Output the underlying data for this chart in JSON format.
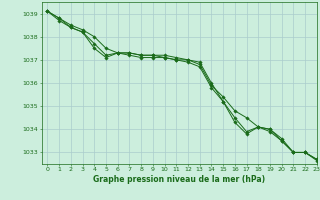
{
  "title": "Graphe pression niveau de la mer (hPa)",
  "background_color": "#cceedd",
  "grid_color": "#aacccc",
  "line_color": "#1a6b1a",
  "xlim": [
    -0.5,
    23
  ],
  "ylim": [
    1032.5,
    1039.5
  ],
  "yticks": [
    1033,
    1034,
    1035,
    1036,
    1037,
    1038,
    1039
  ],
  "xticks": [
    0,
    1,
    2,
    3,
    4,
    5,
    6,
    7,
    8,
    9,
    10,
    11,
    12,
    13,
    14,
    15,
    16,
    17,
    18,
    19,
    20,
    21,
    22,
    23
  ],
  "series1": [
    1039.1,
    1038.7,
    1038.4,
    1038.2,
    1037.7,
    1037.2,
    1037.3,
    1037.3,
    1037.2,
    1037.2,
    1037.2,
    1037.1,
    1037.0,
    1036.9,
    1036.0,
    1035.2,
    1034.5,
    1033.9,
    1034.1,
    1034.0,
    1033.6,
    1033.0,
    1033.0,
    1032.7
  ],
  "series2": [
    1039.1,
    1038.8,
    1038.5,
    1038.3,
    1038.0,
    1037.5,
    1037.3,
    1037.3,
    1037.2,
    1037.2,
    1037.1,
    1037.0,
    1037.0,
    1036.8,
    1035.9,
    1035.4,
    1034.8,
    1034.5,
    1034.1,
    1034.0,
    1033.5,
    1033.0,
    1033.0,
    1032.7
  ],
  "series3": [
    1039.1,
    1038.8,
    1038.4,
    1038.2,
    1037.5,
    1037.1,
    1037.3,
    1037.2,
    1037.1,
    1037.1,
    1037.1,
    1037.0,
    1036.9,
    1036.7,
    1035.8,
    1035.2,
    1034.3,
    1033.8,
    1034.1,
    1033.9,
    1033.5,
    1033.0,
    1033.0,
    1032.65
  ],
  "xlabel_fontsize": 5.5,
  "tick_fontsize": 4.5,
  "linewidth": 0.7,
  "markersize": 1.8
}
